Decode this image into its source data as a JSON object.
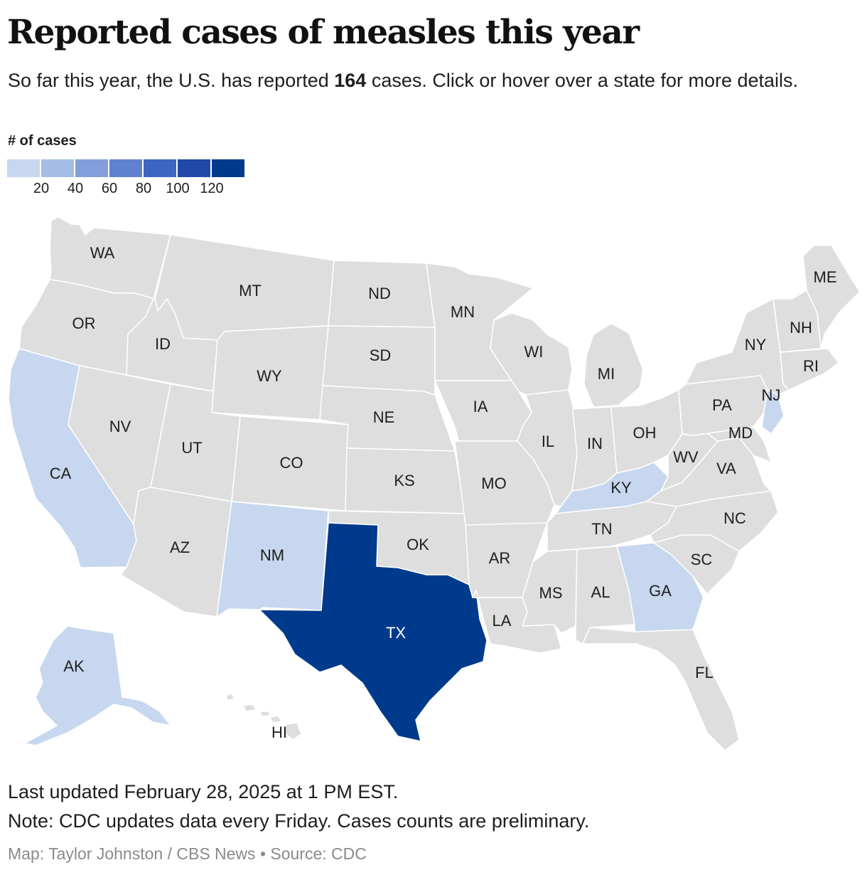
{
  "header": {
    "title": "Reported cases of measles this year",
    "subtitle_before": "So far this year, the U.S. has reported ",
    "subtitle_count": "164",
    "subtitle_after": " cases. Click or hover over a state for more details."
  },
  "legend": {
    "title": "# of cases",
    "colors": [
      "#c6d7ef",
      "#a5bde6",
      "#829fdb",
      "#5e82cf",
      "#3d66c2",
      "#2149a8",
      "#003a8c"
    ],
    "ticks": [
      "20",
      "40",
      "60",
      "80",
      "100",
      "120"
    ]
  },
  "map": {
    "base_color": "#dedede",
    "states": [
      {
        "abbr": "WA",
        "color": "#dedede"
      },
      {
        "abbr": "OR",
        "color": "#dedede"
      },
      {
        "abbr": "CA",
        "color": "#c6d7ef"
      },
      {
        "abbr": "ID",
        "color": "#dedede"
      },
      {
        "abbr": "NV",
        "color": "#dedede"
      },
      {
        "abbr": "MT",
        "color": "#dedede"
      },
      {
        "abbr": "WY",
        "color": "#dedede"
      },
      {
        "abbr": "UT",
        "color": "#dedede"
      },
      {
        "abbr": "AZ",
        "color": "#dedede"
      },
      {
        "abbr": "CO",
        "color": "#dedede"
      },
      {
        "abbr": "NM",
        "color": "#c6d7ef"
      },
      {
        "abbr": "ND",
        "color": "#dedede"
      },
      {
        "abbr": "SD",
        "color": "#dedede"
      },
      {
        "abbr": "NE",
        "color": "#dedede"
      },
      {
        "abbr": "KS",
        "color": "#dedede"
      },
      {
        "abbr": "OK",
        "color": "#dedede"
      },
      {
        "abbr": "TX",
        "color": "#003a8c"
      },
      {
        "abbr": "MN",
        "color": "#dedede"
      },
      {
        "abbr": "IA",
        "color": "#dedede"
      },
      {
        "abbr": "MO",
        "color": "#dedede"
      },
      {
        "abbr": "AR",
        "color": "#dedede"
      },
      {
        "abbr": "LA",
        "color": "#dedede"
      },
      {
        "abbr": "WI",
        "color": "#dedede"
      },
      {
        "abbr": "IL",
        "color": "#dedede"
      },
      {
        "abbr": "MI",
        "color": "#dedede"
      },
      {
        "abbr": "IN",
        "color": "#dedede"
      },
      {
        "abbr": "OH",
        "color": "#dedede"
      },
      {
        "abbr": "KY",
        "color": "#c6d7ef"
      },
      {
        "abbr": "TN",
        "color": "#dedede"
      },
      {
        "abbr": "MS",
        "color": "#dedede"
      },
      {
        "abbr": "AL",
        "color": "#dedede"
      },
      {
        "abbr": "GA",
        "color": "#c6d7ef"
      },
      {
        "abbr": "FL",
        "color": "#dedede"
      },
      {
        "abbr": "SC",
        "color": "#dedede"
      },
      {
        "abbr": "NC",
        "color": "#dedede"
      },
      {
        "abbr": "VA",
        "color": "#dedede"
      },
      {
        "abbr": "WV",
        "color": "#dedede"
      },
      {
        "abbr": "MD",
        "color": "#dedede"
      },
      {
        "abbr": "PA",
        "color": "#dedede"
      },
      {
        "abbr": "NJ",
        "color": "#c6d7ef"
      },
      {
        "abbr": "NY",
        "color": "#dedede"
      },
      {
        "abbr": "RI",
        "color": "#dedede"
      },
      {
        "abbr": "NH",
        "color": "#dedede"
      },
      {
        "abbr": "ME",
        "color": "#dedede"
      },
      {
        "abbr": "AK",
        "color": "#c6d7ef"
      },
      {
        "abbr": "HI",
        "color": "#dedede"
      }
    ]
  },
  "footer": {
    "updated": "Last updated February 28, 2025 at 1 PM EST.",
    "note": "Note: CDC updates data every Friday. Cases counts are preliminary.",
    "credit": "Map: Taylor Johnston / CBS News • Source: CDC"
  }
}
